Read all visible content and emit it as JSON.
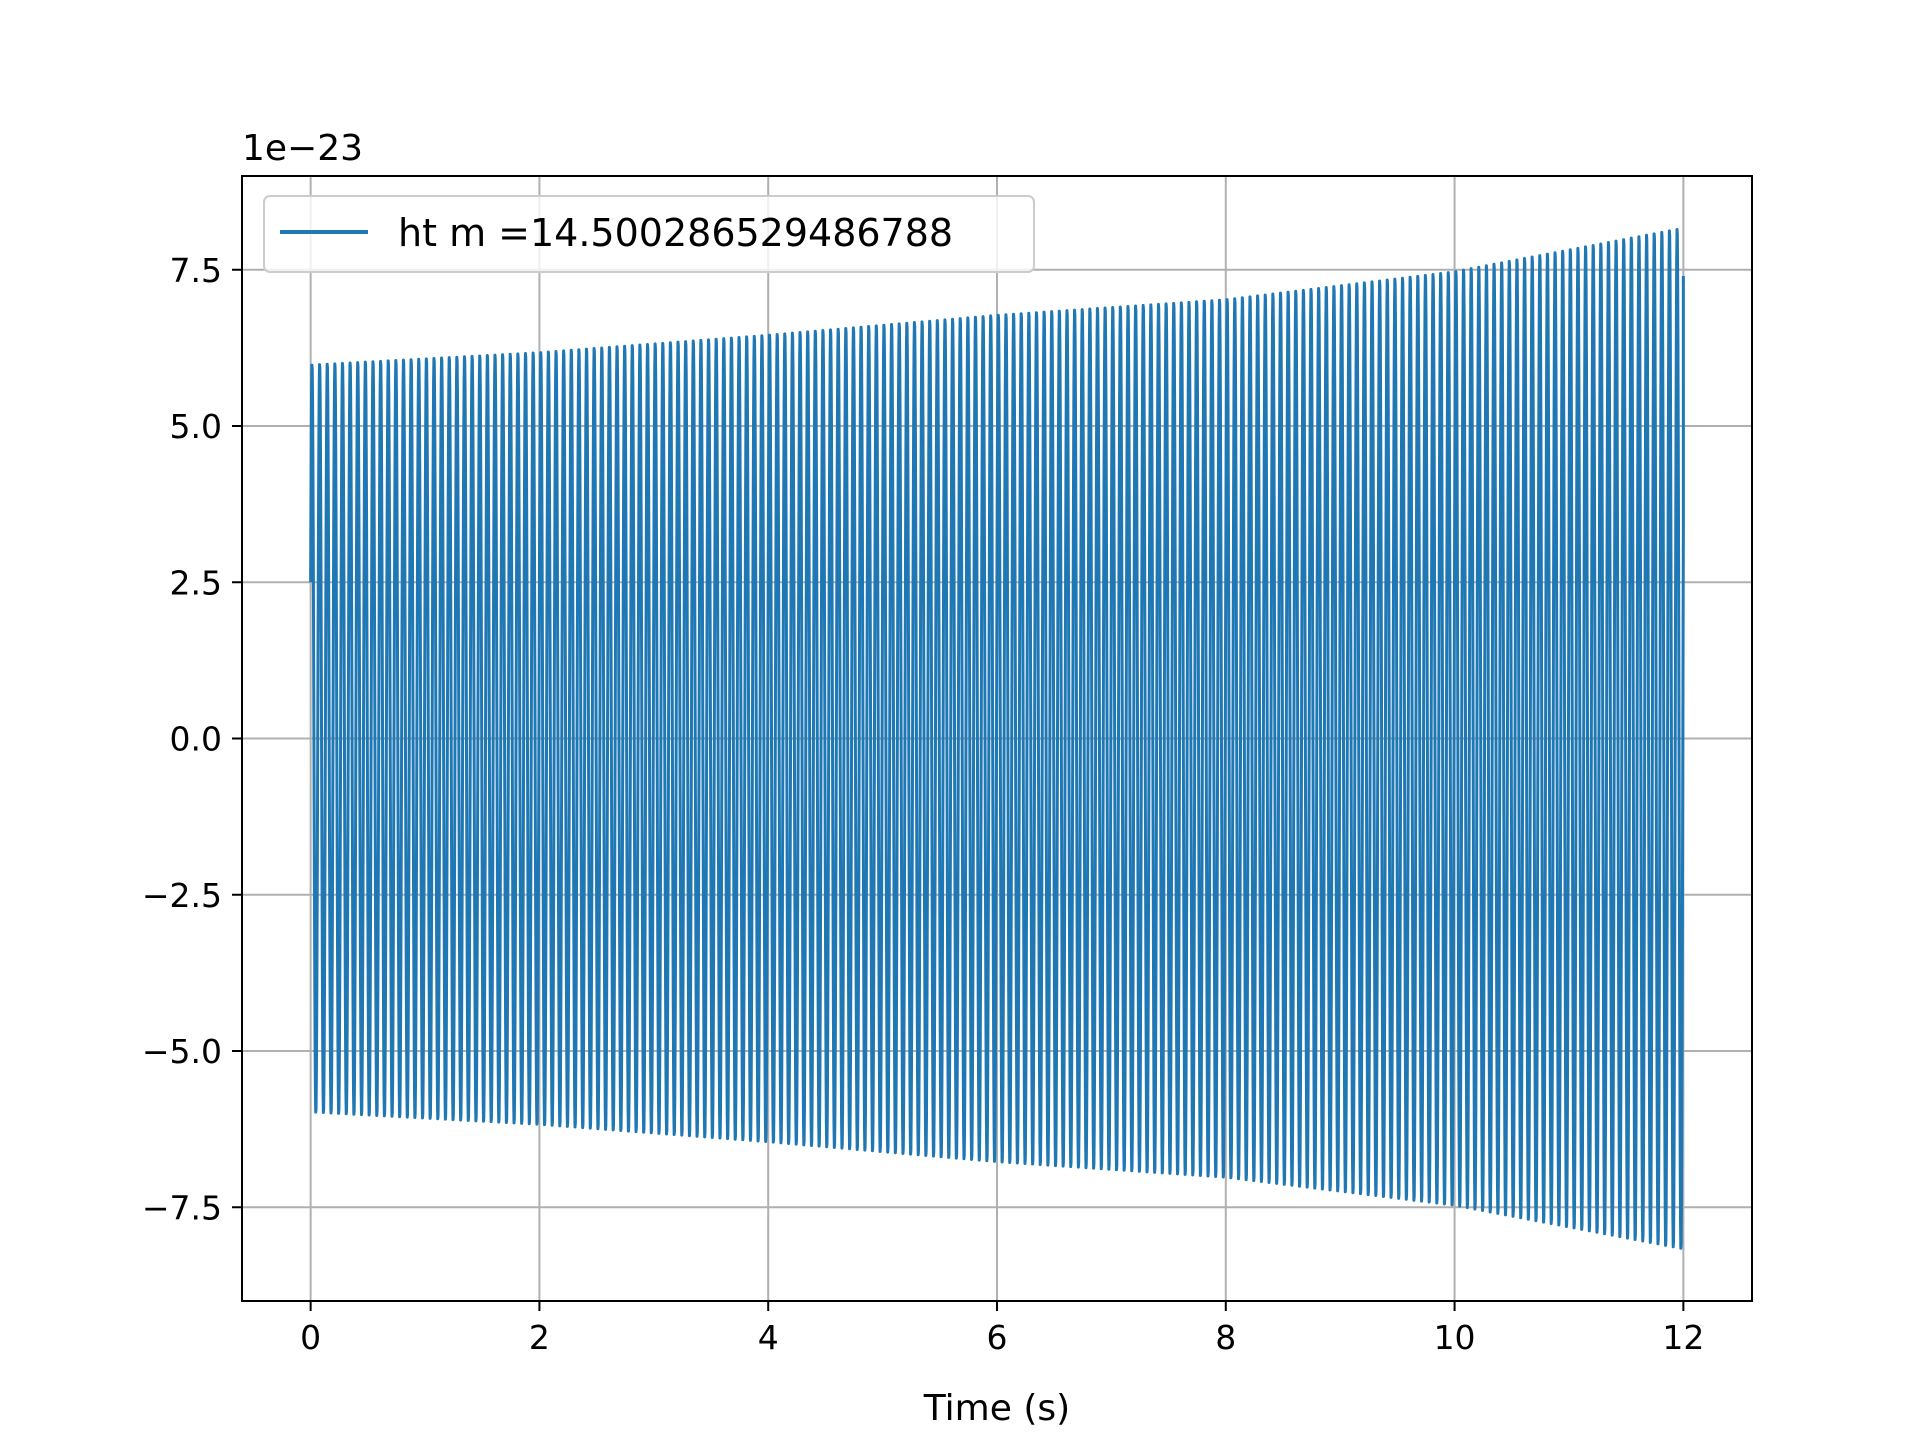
{
  "chart_data": {
    "type": "line",
    "title": "",
    "xlabel": "Time (s)",
    "ylabel": "",
    "y_offset_text": "1e−23",
    "xlim": [
      -0.6,
      12.6
    ],
    "ylim": [
      -9.0,
      9.0
    ],
    "x_ticks": [
      0,
      2,
      4,
      6,
      8,
      10,
      12
    ],
    "x_tick_labels": [
      "0",
      "2",
      "4",
      "6",
      "8",
      "10",
      "12"
    ],
    "y_ticks": [
      -7.5,
      -5.0,
      -2.5,
      0.0,
      2.5,
      5.0,
      7.5
    ],
    "y_tick_labels": [
      "−7.5",
      "−5.0",
      "−2.5",
      "0.0",
      "2.5",
      "5.0",
      "7.5"
    ],
    "grid": true,
    "legend": "upper-left",
    "series": [
      {
        "name": "ht m =14.500286529486788",
        "color": "#1f77b4",
        "t_start": 0,
        "t_end": 12,
        "start_value": 2.5,
        "amplitude_envelope": {
          "x": [
            0,
            2,
            4,
            6,
            8,
            10,
            12
          ],
          "y": [
            6.0,
            6.2,
            6.48,
            6.8,
            7.05,
            7.5,
            8.2
          ]
        },
        "approx_cycles": 180,
        "end_value": 7.4
      }
    ]
  }
}
